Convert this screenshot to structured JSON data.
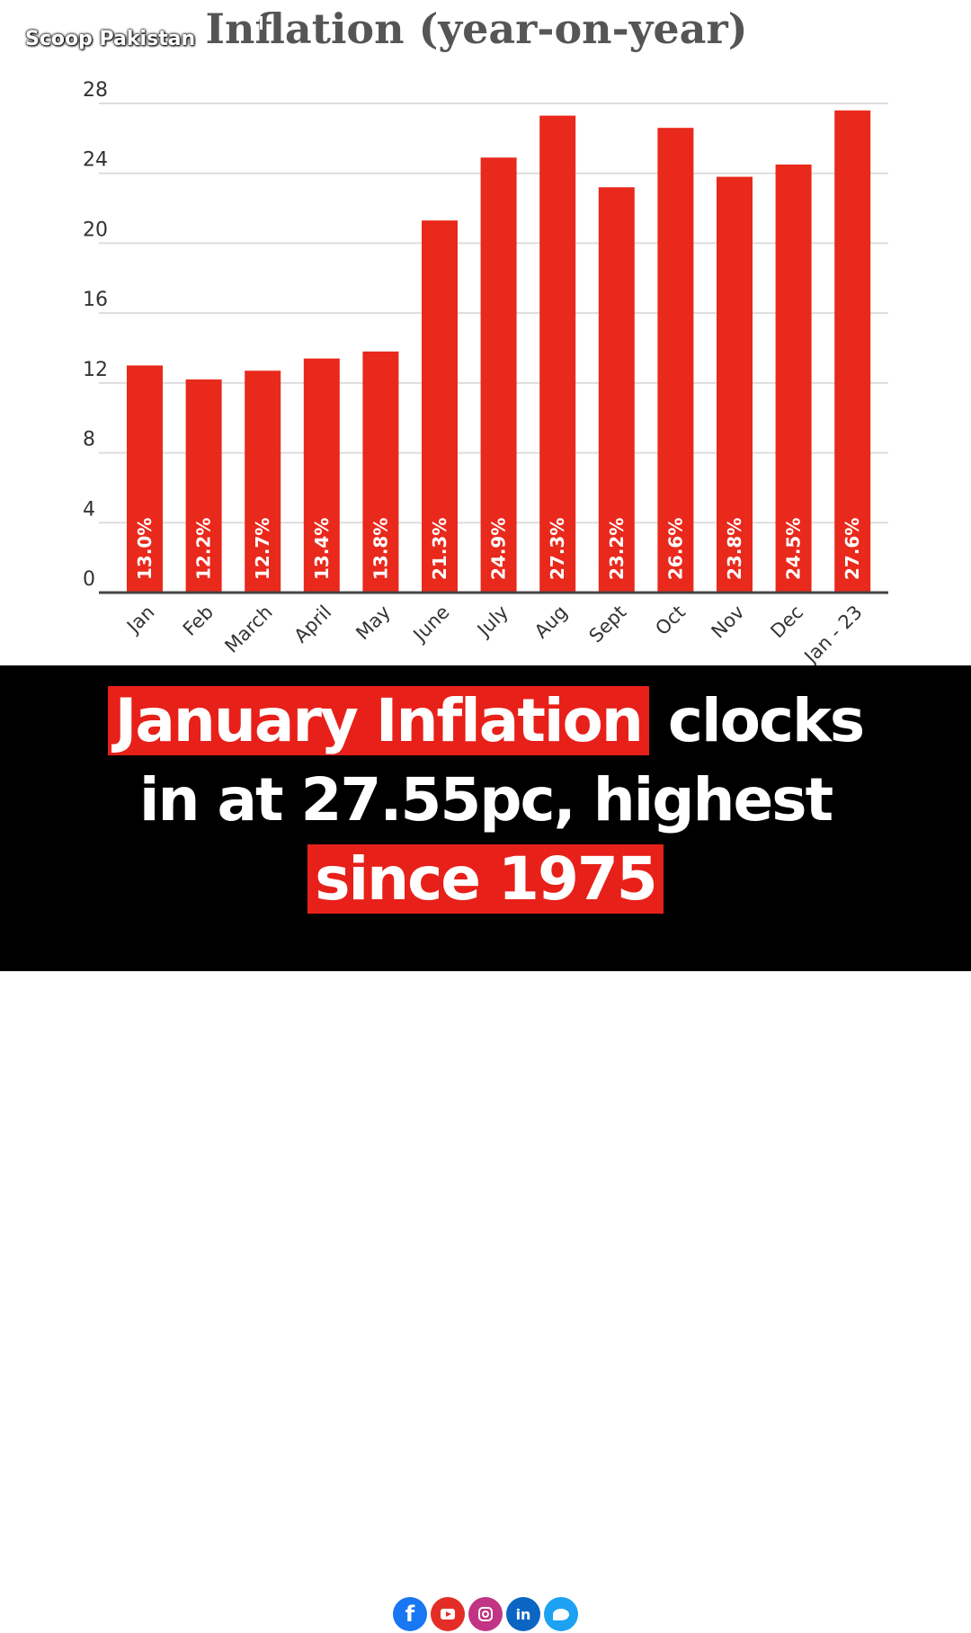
{
  "brand": {
    "name": "Scoop Pakistan"
  },
  "headline": {
    "highlight_1": "January Inflation",
    "rest_1": " clocks",
    "line_2": "in at 27.55pc, highest",
    "highlight_2": "since 1975"
  },
  "social": {
    "icons": [
      "facebook-icon",
      "youtube-icon",
      "instagram-icon",
      "linkedin-icon",
      "twitter-icon"
    ],
    "fb_glyph": "f",
    "in_glyph": "in"
  },
  "colors": {
    "bar": "#e8291c",
    "headline_highlight": "#e8201a",
    "panel": "#000000"
  },
  "chart_data": {
    "type": "bar",
    "title": "Inflation (year-on-year)",
    "categories": [
      "Jan",
      "Feb",
      "March",
      "April",
      "May",
      "June",
      "July",
      "Aug",
      "Sept",
      "Oct",
      "Nov",
      "Dec",
      "Jan - 23"
    ],
    "values": [
      13.0,
      12.2,
      12.7,
      13.4,
      13.8,
      21.3,
      24.9,
      27.3,
      23.2,
      26.6,
      23.8,
      24.5,
      27.6
    ],
    "value_labels": [
      "13.0%",
      "12.2%",
      "12.7%",
      "13.4%",
      "13.8%",
      "21.3%",
      "24.9%",
      "27.3%",
      "23.2%",
      "26.6%",
      "23.8%",
      "24.5%",
      "27.6%"
    ],
    "yticks": [
      0,
      4,
      8,
      12,
      16,
      20,
      24,
      28
    ],
    "ylim": [
      0,
      28
    ],
    "xlabel": "",
    "ylabel": "",
    "grid": true,
    "legend": "none"
  }
}
